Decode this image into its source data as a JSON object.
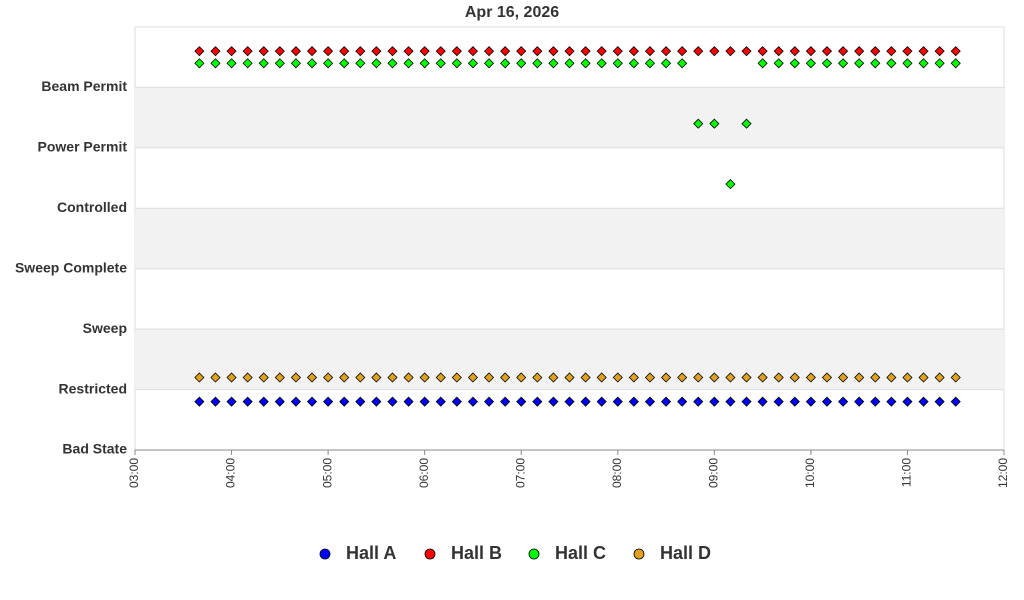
{
  "chart_data": {
    "type": "scatter",
    "title": "Apr 16, 2026",
    "x": [
      "03:40",
      "03:50",
      "04:00",
      "04:10",
      "04:20",
      "04:30",
      "04:40",
      "04:50",
      "05:00",
      "05:10",
      "05:20",
      "05:30",
      "05:40",
      "05:50",
      "06:00",
      "06:10",
      "06:20",
      "06:30",
      "06:40",
      "06:50",
      "07:00",
      "07:10",
      "07:20",
      "07:30",
      "07:40",
      "07:50",
      "08:00",
      "08:10",
      "08:20",
      "08:30",
      "08:40",
      "08:50",
      "09:00",
      "09:10",
      "09:20",
      "09:30",
      "09:40",
      "09:50",
      "10:00",
      "10:10",
      "10:20",
      "10:30",
      "10:40",
      "10:50",
      "11:00",
      "11:10",
      "11:20",
      "11:30"
    ],
    "series": [
      {
        "name": "Hall A",
        "color": "#0000ff",
        "values": [
          0.8,
          0.8,
          0.8,
          0.8,
          0.8,
          0.8,
          0.8,
          0.8,
          0.8,
          0.8,
          0.8,
          0.8,
          0.8,
          0.8,
          0.8,
          0.8,
          0.8,
          0.8,
          0.8,
          0.8,
          0.8,
          0.8,
          0.8,
          0.8,
          0.8,
          0.8,
          0.8,
          0.8,
          0.8,
          0.8,
          0.8,
          0.8,
          0.8,
          0.8,
          0.8,
          0.8,
          0.8,
          0.8,
          0.8,
          0.8,
          0.8,
          0.8,
          0.8,
          0.8,
          0.8,
          0.8,
          0.8,
          0.8
        ]
      },
      {
        "name": "Hall B",
        "color": "#ff0000",
        "values": [
          6.6,
          6.6,
          6.6,
          6.6,
          6.6,
          6.6,
          6.6,
          6.6,
          6.6,
          6.6,
          6.6,
          6.6,
          6.6,
          6.6,
          6.6,
          6.6,
          6.6,
          6.6,
          6.6,
          6.6,
          6.6,
          6.6,
          6.6,
          6.6,
          6.6,
          6.6,
          6.6,
          6.6,
          6.6,
          6.6,
          6.6,
          6.6,
          6.6,
          6.6,
          6.6,
          6.6,
          6.6,
          6.6,
          6.6,
          6.6,
          6.6,
          6.6,
          6.6,
          6.6,
          6.6,
          6.6,
          6.6,
          6.6
        ]
      },
      {
        "name": "Hall C",
        "color": "#00ff00",
        "values": [
          6.4,
          6.4,
          6.4,
          6.4,
          6.4,
          6.4,
          6.4,
          6.4,
          6.4,
          6.4,
          6.4,
          6.4,
          6.4,
          6.4,
          6.4,
          6.4,
          6.4,
          6.4,
          6.4,
          6.4,
          6.4,
          6.4,
          6.4,
          6.4,
          6.4,
          6.4,
          6.4,
          6.4,
          6.4,
          6.4,
          6.4,
          5.4,
          5.4,
          4.4,
          5.4,
          6.4,
          6.4,
          6.4,
          6.4,
          6.4,
          6.4,
          6.4,
          6.4,
          6.4,
          6.4,
          6.4,
          6.4,
          6.4
        ]
      },
      {
        "name": "Hall D",
        "color": "#e0a020",
        "values": [
          1.2,
          1.2,
          1.2,
          1.2,
          1.2,
          1.2,
          1.2,
          1.2,
          1.2,
          1.2,
          1.2,
          1.2,
          1.2,
          1.2,
          1.2,
          1.2,
          1.2,
          1.2,
          1.2,
          1.2,
          1.2,
          1.2,
          1.2,
          1.2,
          1.2,
          1.2,
          1.2,
          1.2,
          1.2,
          1.2,
          1.2,
          1.2,
          1.2,
          1.2,
          1.2,
          1.2,
          1.2,
          1.2,
          1.2,
          1.2,
          1.2,
          1.2,
          1.2,
          1.2,
          1.2,
          1.2,
          1.2,
          1.2
        ]
      }
    ],
    "xlim": [
      "03:00",
      "12:00"
    ],
    "xticks": [
      "03:00",
      "04:00",
      "05:00",
      "06:00",
      "07:00",
      "08:00",
      "09:00",
      "10:00",
      "11:00",
      "12:00"
    ],
    "ylim": [
      0,
      7
    ],
    "yticks": [
      {
        "value": 0,
        "label": "Bad State"
      },
      {
        "value": 1,
        "label": "Restricted"
      },
      {
        "value": 2,
        "label": "Sweep"
      },
      {
        "value": 3,
        "label": "Sweep Complete"
      },
      {
        "value": 4,
        "label": "Controlled"
      },
      {
        "value": 5,
        "label": "Power Permit"
      },
      {
        "value": 6,
        "label": "Beam Permit"
      }
    ]
  }
}
